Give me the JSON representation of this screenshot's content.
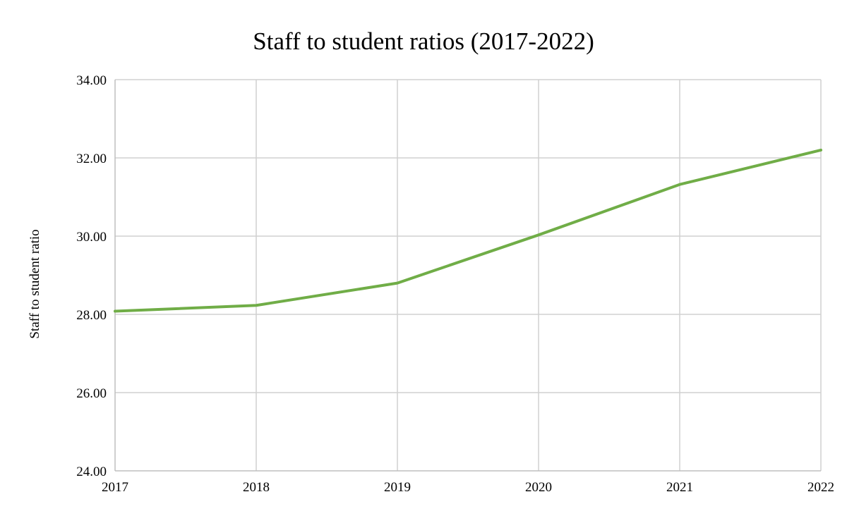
{
  "chart_data": {
    "type": "line",
    "title": "Staff to student ratios (2017-2022)",
    "xlabel": "",
    "ylabel": "Staff to student ratio",
    "x": [
      "2017",
      "2018",
      "2019",
      "2020",
      "2021",
      "2022"
    ],
    "y_ticks": [
      "24.00",
      "26.00",
      "28.00",
      "30.00",
      "32.00",
      "34.00"
    ],
    "ylim": [
      24,
      34
    ],
    "grid": true,
    "legend": "none",
    "series": [
      {
        "color": "#70ad47",
        "values": [
          28.08,
          28.23,
          28.8,
          30.03,
          31.32,
          32.2
        ]
      }
    ]
  }
}
